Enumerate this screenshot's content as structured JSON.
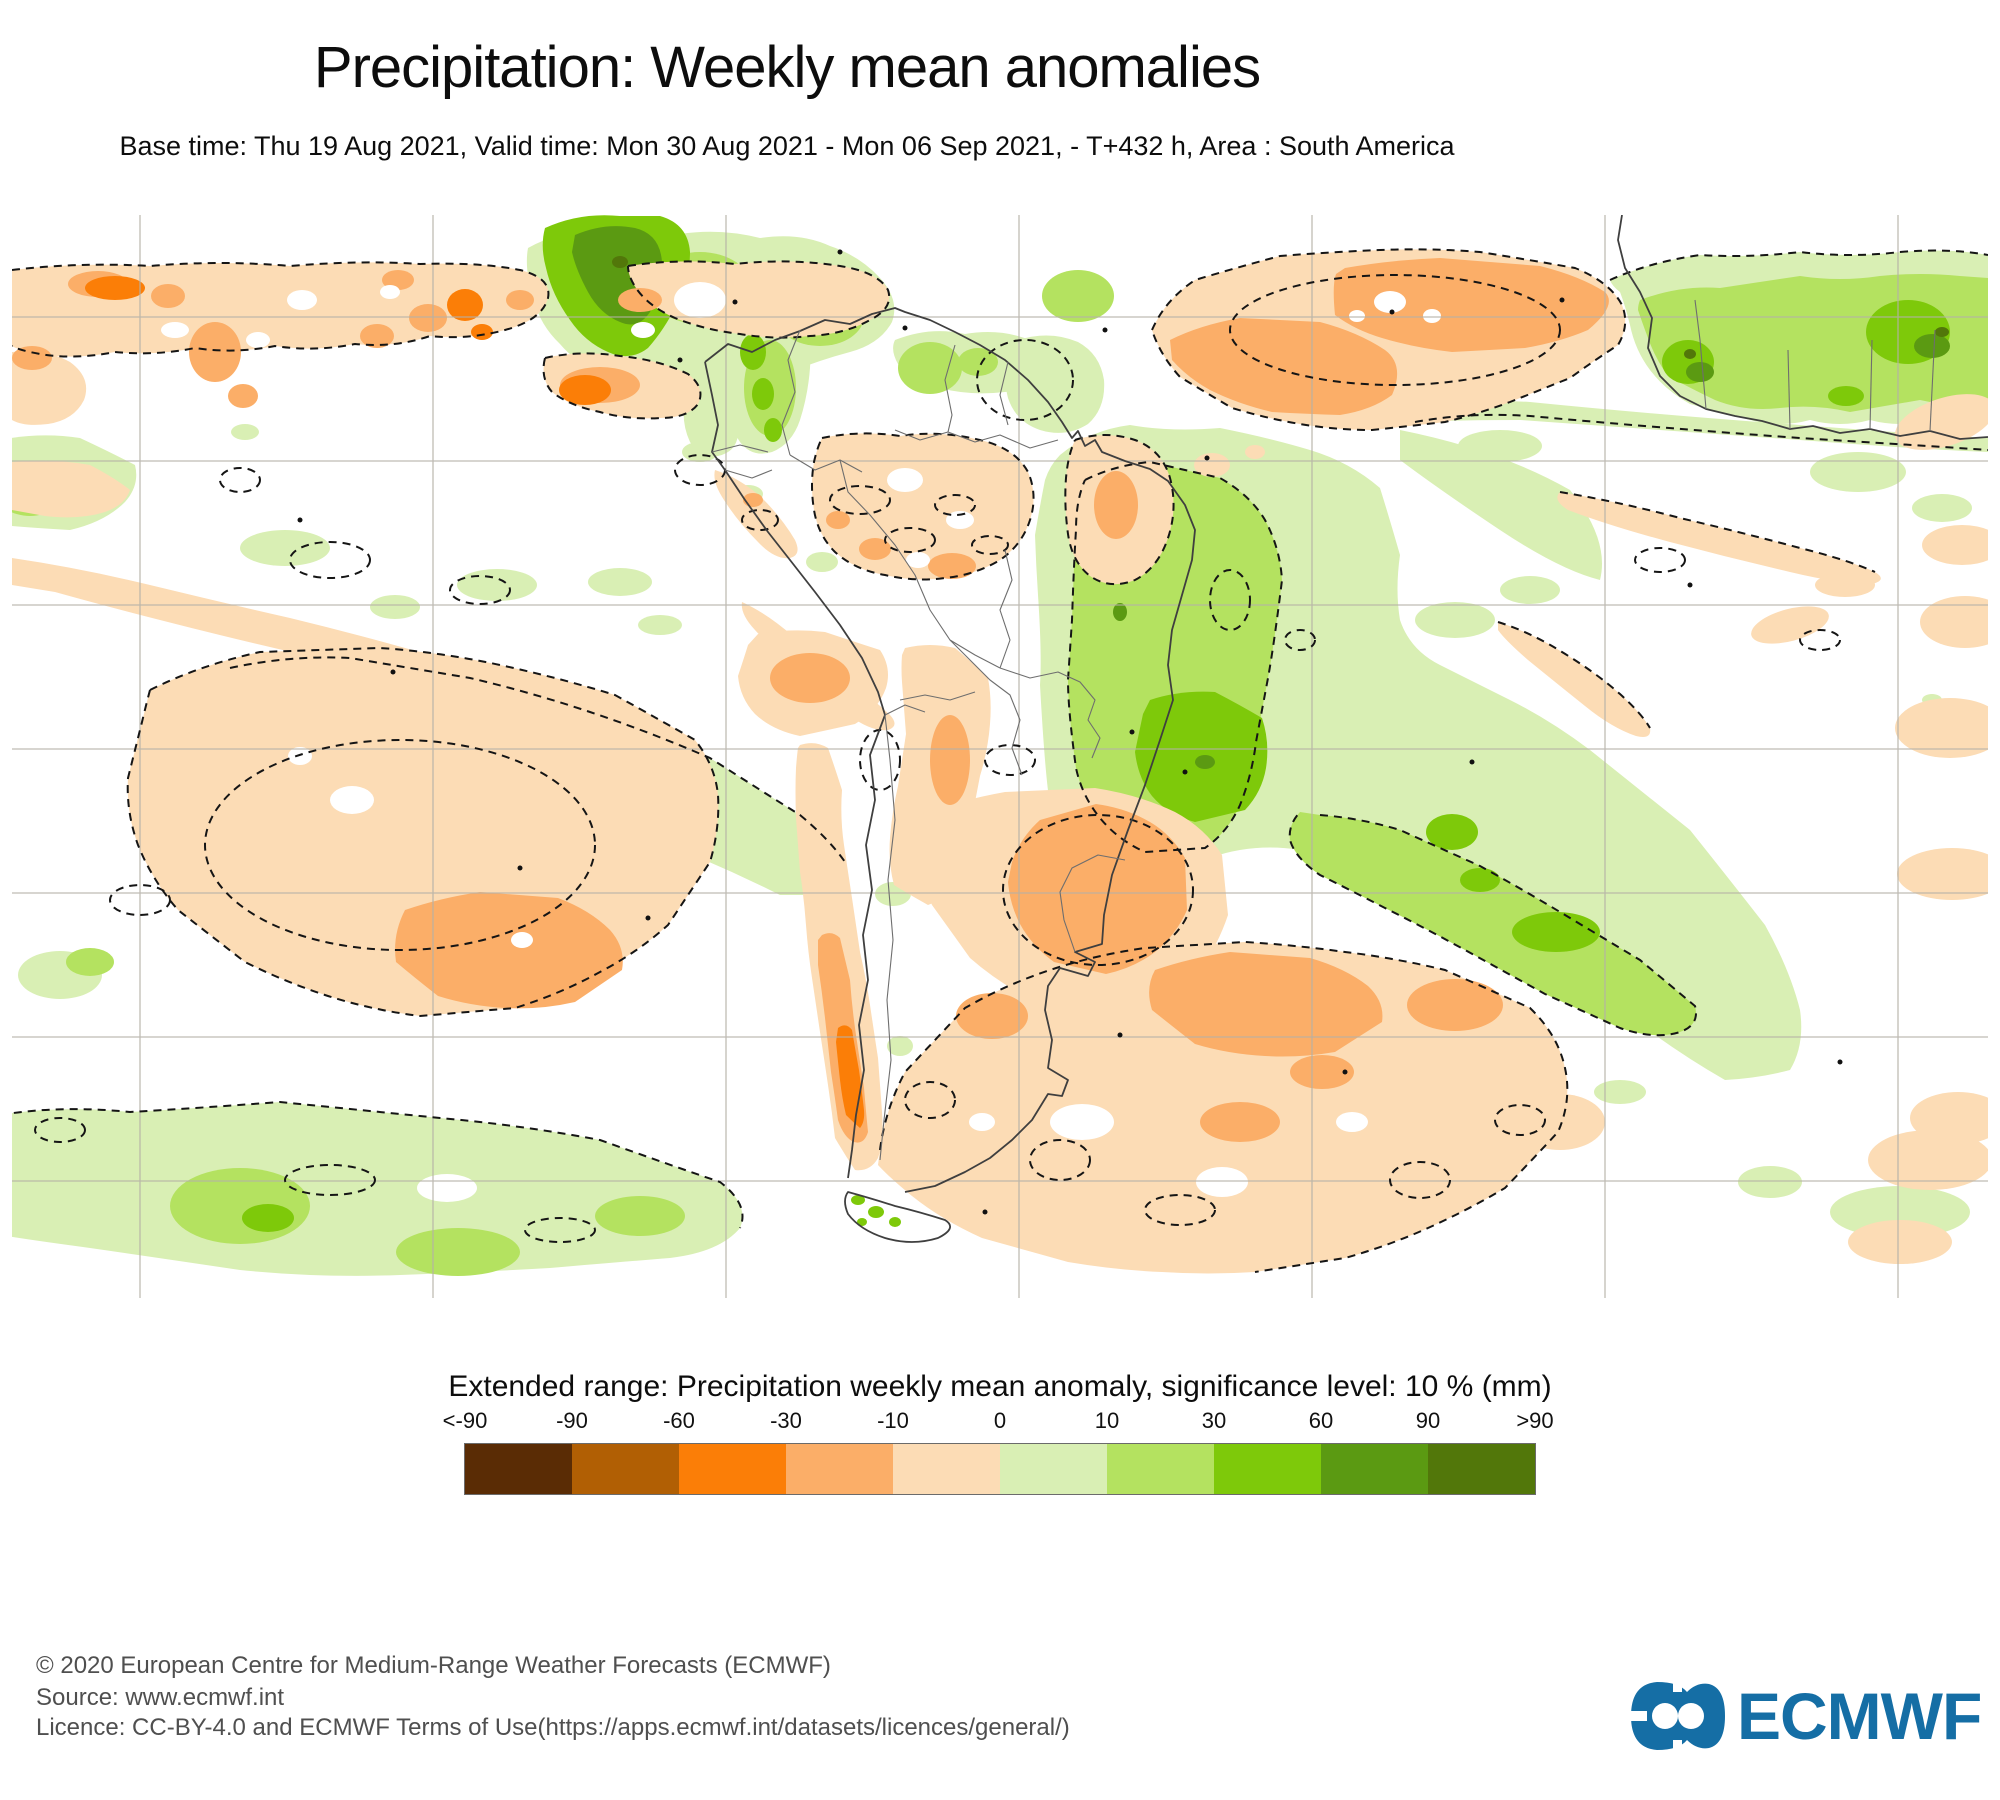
{
  "header": {
    "title": "Precipitation: Weekly mean anomalies",
    "subtitle": "Base time: Thu 19 Aug 2021, Valid time: Mon 30 Aug 2021 - Mon 06 Sep 2021, - T+432 h, Area : South America"
  },
  "map": {
    "area": "South America",
    "gridline_color": "#b5b1a7",
    "coastline_color": "#3f3f3f",
    "palette": {
      "light_orange": "#FCDCB5",
      "mid_orange": "#FBAE68",
      "vivid_orange": "#FB7E07",
      "light_green": "#D9EFB4",
      "mid_green": "#B4E260",
      "bright_green": "#7EC90A",
      "dark_green": "#5B9A12",
      "darkest_green": "#52770A"
    }
  },
  "legend": {
    "title": "Extended range: Precipitation weekly mean anomaly, significance level: 10 % (mm)",
    "tick_labels": [
      "<-90",
      "-90",
      "-60",
      "-30",
      "-10",
      "0",
      "10",
      "30",
      "60",
      "90",
      ">90"
    ],
    "colors": [
      "#5A2C05",
      "#B15F04",
      "#FB7E07",
      "#FBAE68",
      "#FCDCB5",
      "#D9EFB4",
      "#B4E260",
      "#7EC90A",
      "#5B9A12",
      "#52770A"
    ],
    "scale_values": [
      -90,
      -60,
      -30,
      -10,
      0,
      10,
      30,
      60,
      90
    ]
  },
  "footer": {
    "lines": [
      "© 2020 European Centre for Medium-Range Weather Forecasts (ECMWF)",
      "Source: www.ecmwf.int",
      "Licence: CC-BY-4.0 and ECMWF Terms of Use(https://apps.ecmwf.int/datasets/licences/general/)"
    ],
    "logo_text": "ECMWF",
    "logo_color": "#156EA5"
  }
}
